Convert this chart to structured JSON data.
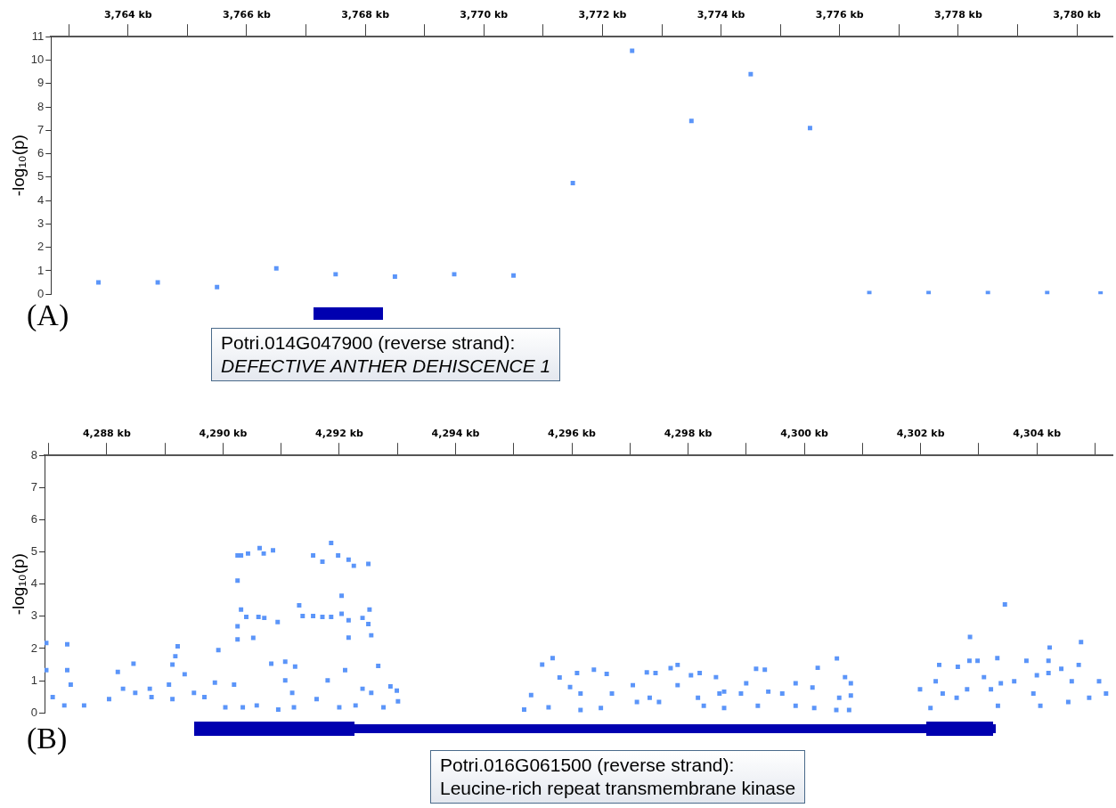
{
  "chart_data": [
    {
      "type": "scatter",
      "ylabel": "-log₁₀(p)",
      "marker": "square",
      "grid": false,
      "legend": false,
      "annotations": [
        "(A)",
        "Potri.014G047900 (reverse strand):",
        "DEFECTIVE ANTHER DEHISCENCE 1"
      ],
      "xlim": [
        3762.7,
        3780.6
      ],
      "ylim": [
        0,
        11
      ],
      "yticks": [
        0,
        1,
        2,
        3,
        4,
        5,
        6,
        7,
        8,
        9,
        10,
        11
      ],
      "xticks": [
        {
          "value": 3763,
          "label": null
        },
        {
          "value": 3764,
          "label": "3,764 kb"
        },
        {
          "value": 3765,
          "label": null
        },
        {
          "value": 3766,
          "label": "3,766 kb"
        },
        {
          "value": 3767,
          "label": null
        },
        {
          "value": 3768,
          "label": "3,768 kb"
        },
        {
          "value": 3769,
          "label": null
        },
        {
          "value": 3770,
          "label": "3,770 kb"
        },
        {
          "value": 3771,
          "label": null
        },
        {
          "value": 3772,
          "label": "3,772 kb"
        },
        {
          "value": 3773,
          "label": null
        },
        {
          "value": 3774,
          "label": "3,774 kb"
        },
        {
          "value": 3775,
          "label": null
        },
        {
          "value": 3776,
          "label": "3,776 kb"
        },
        {
          "value": 3777,
          "label": null
        },
        {
          "value": 3778,
          "label": "3,778 kb"
        },
        {
          "value": 3779,
          "label": null
        },
        {
          "value": 3780,
          "label": "3,780 kb"
        }
      ],
      "series": [
        {
          "color": "#5b95f9",
          "x": [
            3763.5,
            3764.5,
            3765.5,
            3766.5,
            3767.5,
            3768.5,
            3769.5,
            3770.5,
            3771.5,
            3772.5,
            3773.5,
            3774.5,
            3775.5,
            3776.5,
            3777.5,
            3778.5,
            3779.5,
            3780.4
          ],
          "values": [
            0.5,
            0.5,
            0.3,
            1.1,
            0.85,
            0.75,
            0.85,
            0.8,
            4.75,
            10.4,
            7.4,
            9.4,
            7.1,
            0.05,
            0.05,
            0.05,
            0.05,
            0.03
          ]
        }
      ]
    },
    {
      "type": "scatter",
      "ylabel": "-log₁₀(p)",
      "marker": "square",
      "grid": false,
      "legend": false,
      "annotations": [
        "(B)",
        "Potri.016G061500 (reverse strand):",
        "Leucine-rich repeat transmembrane kinase"
      ],
      "xlim": [
        4286.93,
        4305.3
      ],
      "ylim": [
        0,
        8
      ],
      "yticks": [
        0,
        1,
        2,
        3,
        4,
        5,
        6,
        7,
        8
      ],
      "xticks": [
        {
          "value": 4287,
          "label": null
        },
        {
          "value": 4288,
          "label": "4,288 kb"
        },
        {
          "value": 4289,
          "label": null
        },
        {
          "value": 4290,
          "label": "4,290 kb"
        },
        {
          "value": 4291,
          "label": null
        },
        {
          "value": 4292,
          "label": "4,292 kb"
        },
        {
          "value": 4293,
          "label": null
        },
        {
          "value": 4294,
          "label": "4,294 kb"
        },
        {
          "value": 4295,
          "label": null
        },
        {
          "value": 4296,
          "label": "4,296 kb"
        },
        {
          "value": 4297,
          "label": null
        },
        {
          "value": 4298,
          "label": "4,298 kb"
        },
        {
          "value": 4299,
          "label": null
        },
        {
          "value": 4300,
          "label": "4,300 kb"
        },
        {
          "value": 4301,
          "label": null
        },
        {
          "value": 4302,
          "label": "4,302 kb"
        },
        {
          "value": 4303,
          "label": null
        },
        {
          "value": 4304,
          "label": "4,304 kb"
        },
        {
          "value": 4305,
          "label": null
        }
      ],
      "series": [
        {
          "color": "#5b95f9",
          "x": [
            4286.96,
            4287.32,
            4286.96,
            4287.32,
            4287.07,
            4287.27,
            4287.38,
            4287.61,
            4288.19,
            4288.46,
            4288.28,
            4288.49,
            4288.04,
            4288.74,
            4288.77,
            4289.22,
            4289.18,
            4289.13,
            4289.34,
            4289.07,
            4289.13,
            4289.5,
            4289.68,
            4289.86,
            4289.92,
            4290.04,
            4290.19,
            4290.25,
            4290.25,
            4290.31,
            4290.43,
            4290.63,
            4290.7,
            4290.86,
            4290.31,
            4290.25,
            4290.25,
            4290.4,
            4290.61,
            4290.71,
            4290.94,
            4290.52,
            4290.34,
            4290.58,
            4290.83,
            4291.07,
            4291.24,
            4291.07,
            4291.19,
            4290.95,
            4291.22,
            4291.55,
            4291.71,
            4291.86,
            4291.98,
            4292.16,
            4292.25,
            4292.5,
            4292.04,
            4291.31,
            4291.37,
            4291.55,
            4291.71,
            4291.86,
            4292.04,
            4292.16,
            4292.4,
            4292.52,
            4292.5,
            4292.16,
            4292.55,
            4292.67,
            4292.1,
            4291.8,
            4291.61,
            4292.0,
            4292.28,
            4292.4,
            4292.55,
            4292.76,
            4292.88,
            4293.01,
            4292.99,
            4295.18,
            4295.49,
            4295.67,
            4295.3,
            4295.79,
            4295.97,
            4295.6,
            4296.09,
            4296.15,
            4296.15,
            4296.38,
            4296.6,
            4296.69,
            4296.5,
            4297.05,
            4297.12,
            4297.29,
            4297.44,
            4297.34,
            4297.5,
            4297.7,
            4297.82,
            4297.82,
            4298.05,
            4298.2,
            4298.17,
            4298.27,
            4298.48,
            4298.54,
            4298.62,
            4298.62,
            4298.91,
            4299.0,
            4299.17,
            4299.32,
            4299.2,
            4299.38,
            4299.62,
            4299.85,
            4300.14,
            4299.85,
            4300.17,
            4300.23,
            4300.56,
            4300.7,
            4300.8,
            4300.8,
            4300.6,
            4300.55,
            4300.77,
            4301.99,
            4302.17,
            4302.26,
            4302.32,
            4302.38,
            4302.62,
            4302.64,
            4302.85,
            4302.84,
            4302.8,
            4302.98,
            4303.09,
            4303.21,
            4303.33,
            4303.32,
            4303.45,
            4303.38,
            4303.61,
            4303.82,
            4303.94,
            4304.0,
            4304.06,
            4304.22,
            4304.2,
            4304.2,
            4304.42,
            4304.6,
            4304.72,
            4304.76,
            4304.54,
            4304.9,
            4305.07,
            4305.19
          ],
          "values": [
            2.17,
            2.13,
            1.33,
            1.33,
            0.49,
            0.23,
            0.88,
            0.23,
            1.27,
            1.53,
            0.75,
            0.62,
            0.43,
            0.75,
            0.49,
            2.07,
            1.76,
            1.5,
            1.2,
            0.88,
            0.43,
            0.62,
            0.49,
            0.94,
            1.95,
            0.17,
            0.88,
            4.11,
            4.89,
            4.89,
            4.95,
            5.12,
            4.95,
            5.05,
            3.21,
            2.69,
            2.28,
            2.98,
            2.98,
            2.95,
            2.82,
            2.33,
            0.17,
            0.23,
            1.53,
            1.59,
            1.44,
            1.01,
            0.62,
            0.1,
            0.17,
            4.89,
            4.7,
            5.28,
            4.89,
            4.76,
            4.57,
            4.63,
            3.64,
            3.34,
            3.01,
            3.01,
            2.98,
            2.98,
            3.08,
            2.88,
            2.95,
            3.21,
            2.76,
            2.34,
            2.41,
            1.46,
            1.33,
            1.01,
            0.43,
            0.17,
            0.23,
            0.75,
            0.62,
            0.17,
            0.82,
            0.36,
            0.69,
            0.1,
            1.5,
            1.7,
            0.55,
            1.1,
            0.8,
            0.17,
            1.24,
            0.6,
            0.09,
            1.34,
            1.21,
            0.6,
            0.15,
            0.86,
            0.34,
            1.26,
            1.24,
            0.47,
            0.34,
            1.39,
            1.49,
            0.86,
            1.17,
            1.24,
            0.47,
            0.22,
            1.11,
            0.6,
            0.66,
            0.15,
            0.6,
            0.92,
            1.37,
            1.34,
            0.22,
            0.66,
            0.6,
            0.92,
            0.79,
            0.22,
            0.15,
            1.4,
            1.69,
            1.11,
            0.92,
            0.54,
            0.47,
            0.09,
            0.09,
            0.73,
            0.15,
            0.98,
            1.49,
            0.6,
            0.47,
            1.43,
            2.36,
            1.62,
            0.73,
            1.62,
            1.11,
            0.73,
            0.22,
            1.7,
            3.37,
            0.92,
            0.98,
            1.62,
            0.6,
            1.17,
            0.22,
            2.03,
            1.62,
            1.24,
            1.37,
            0.98,
            1.49,
            2.2,
            0.34,
            0.47,
            0.98,
            0.6
          ]
        }
      ]
    }
  ]
}
